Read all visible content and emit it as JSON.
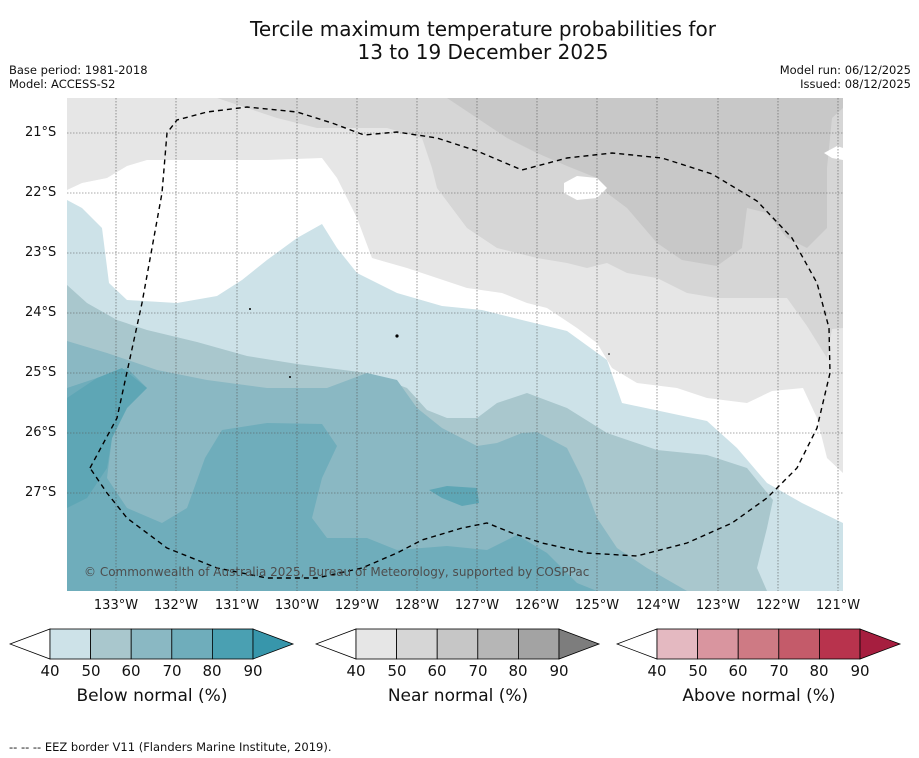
{
  "title_line1": "Tercile maximum temperature probabilities for",
  "title_line2": "13 to 19 December 2025",
  "meta_left": [
    "Base period: 1981-2018",
    "Model: ACCESS-S2"
  ],
  "meta_right": [
    "Model run: 06/12/2025",
    "Issued: 08/12/2025"
  ],
  "latitudes": [
    "21°S",
    "22°S",
    "23°S",
    "24°S",
    "25°S",
    "26°S",
    "27°S"
  ],
  "longitudes": [
    "133°W",
    "132°W",
    "131°W",
    "130°W",
    "129°W",
    "128°W",
    "127°W",
    "126°W",
    "125°W",
    "124°W",
    "123°W",
    "122°W",
    "121°W"
  ],
  "copyright": "© Commonwealth of Australia 2025, Bureau of Meteorology, supported by COSPPac",
  "legends": [
    {
      "label": "Below normal (%)",
      "ticks": [
        "40",
        "50",
        "60",
        "70",
        "80",
        "90"
      ],
      "colors": [
        "#cde2e8",
        "#a9c7cd",
        "#8ab8c3",
        "#6fadbb",
        "#4aa0b2",
        "#3796ab"
      ]
    },
    {
      "label": "Near normal (%)",
      "ticks": [
        "40",
        "50",
        "60",
        "70",
        "80",
        "90"
      ],
      "colors": [
        "#e6e6e6",
        "#d6d6d6",
        "#c6c6c6",
        "#b6b6b6",
        "#a3a3a3",
        "#7d7d7d"
      ]
    },
    {
      "label": "Above normal (%)",
      "ticks": [
        "40",
        "50",
        "60",
        "70",
        "80",
        "90"
      ],
      "colors": [
        "#e4b9c1",
        "#d9959f",
        "#ce7a84",
        "#c45b6a",
        "#b8334d",
        "#a61e3f"
      ]
    }
  ],
  "footer": "--  --  -- EEZ border V11 (Flanders Marine Institute, 2019)."
}
